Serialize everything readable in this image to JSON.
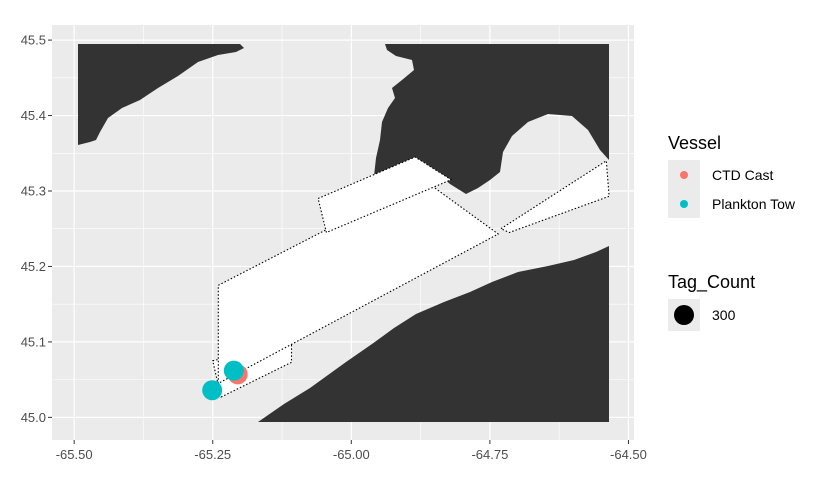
{
  "chart_data": {
    "type": "scatter",
    "title": "",
    "xlabel": "",
    "ylabel": "",
    "xlim": [
      -65.54,
      -64.49
    ],
    "ylim": [
      44.97,
      45.52
    ],
    "x_ticks": [
      "-65.50",
      "-65.25",
      "-65.00",
      "-64.75",
      "-64.50"
    ],
    "y_ticks": [
      "45.0",
      "45.1",
      "45.2",
      "45.3",
      "45.4",
      "45.5"
    ],
    "grid": true,
    "legend_placement": "right",
    "series": [
      {
        "name": "CTD Cast",
        "color": "#F8766D",
        "points": [
          {
            "x": -65.205,
            "y": 45.057,
            "tag_count": 300
          }
        ]
      },
      {
        "name": "Plankton Tow",
        "color": "#00BFC4",
        "points": [
          {
            "x": -65.251,
            "y": 45.036,
            "tag_count": 300
          },
          {
            "x": -65.212,
            "y": 45.062,
            "tag_count": 300
          }
        ]
      }
    ],
    "survey_areas": [
      [
        [
          -65.25,
          45.075
        ],
        [
          -65.108,
          45.1
        ],
        [
          -65.108,
          45.073
        ],
        [
          -65.235,
          45.027
        ]
      ],
      [
        [
          -65.24,
          45.175
        ],
        [
          -64.87,
          45.315
        ],
        [
          -64.735,
          45.243
        ],
        [
          -65.24,
          45.045
        ]
      ],
      [
        [
          -65.06,
          45.29
        ],
        [
          -64.885,
          45.345
        ],
        [
          -64.82,
          45.315
        ],
        [
          -65.045,
          45.245
        ]
      ],
      [
        [
          -64.73,
          45.25
        ],
        [
          -64.54,
          45.34
        ],
        [
          -64.535,
          45.293
        ],
        [
          -64.715,
          45.245
        ]
      ]
    ]
  },
  "legend": {
    "vessel_title": "Vessel",
    "vessel_items": [
      {
        "label": "CTD Cast",
        "color": "#F8766D"
      },
      {
        "label": "Plankton Tow",
        "color": "#00BFC4"
      }
    ],
    "size_title": "Tag_Count",
    "size_items": [
      {
        "label": "300"
      }
    ]
  }
}
